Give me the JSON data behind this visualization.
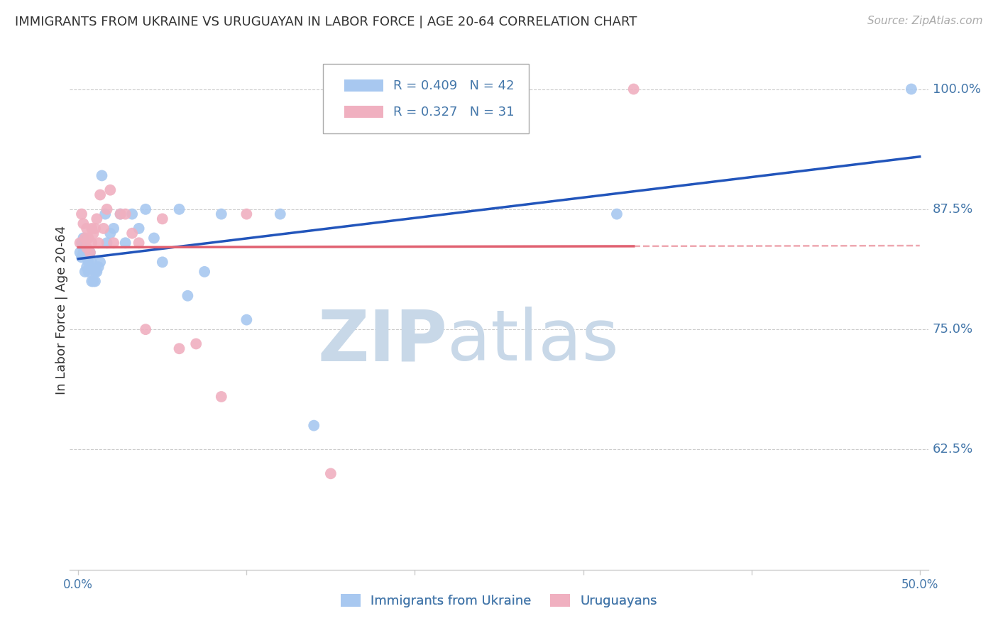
{
  "title": "IMMIGRANTS FROM UKRAINE VS URUGUAYAN IN LABOR FORCE | AGE 20-64 CORRELATION CHART",
  "source": "Source: ZipAtlas.com",
  "ylabel": "In Labor Force | Age 20-64",
  "ytick_labels": [
    "100.0%",
    "87.5%",
    "75.0%",
    "62.5%"
  ],
  "ytick_values": [
    1.0,
    0.875,
    0.75,
    0.625
  ],
  "xlim": [
    -0.005,
    0.505
  ],
  "ylim": [
    0.5,
    1.04
  ],
  "ukraine_x": [
    0.001,
    0.002,
    0.002,
    0.003,
    0.003,
    0.004,
    0.004,
    0.005,
    0.005,
    0.006,
    0.006,
    0.007,
    0.007,
    0.008,
    0.008,
    0.009,
    0.01,
    0.01,
    0.011,
    0.012,
    0.013,
    0.014,
    0.016,
    0.017,
    0.019,
    0.021,
    0.025,
    0.028,
    0.032,
    0.036,
    0.04,
    0.045,
    0.05,
    0.06,
    0.065,
    0.075,
    0.085,
    0.1,
    0.12,
    0.14,
    0.32,
    0.495
  ],
  "ukraine_y": [
    0.83,
    0.84,
    0.825,
    0.845,
    0.83,
    0.835,
    0.81,
    0.825,
    0.815,
    0.82,
    0.81,
    0.83,
    0.815,
    0.8,
    0.82,
    0.8,
    0.81,
    0.8,
    0.81,
    0.815,
    0.82,
    0.91,
    0.87,
    0.84,
    0.85,
    0.855,
    0.87,
    0.84,
    0.87,
    0.855,
    0.875,
    0.845,
    0.82,
    0.875,
    0.785,
    0.81,
    0.87,
    0.76,
    0.87,
    0.65,
    0.87,
    1.0
  ],
  "uruguay_x": [
    0.001,
    0.002,
    0.003,
    0.004,
    0.005,
    0.005,
    0.006,
    0.007,
    0.008,
    0.008,
    0.009,
    0.01,
    0.011,
    0.012,
    0.013,
    0.015,
    0.017,
    0.019,
    0.021,
    0.025,
    0.028,
    0.032,
    0.036,
    0.04,
    0.05,
    0.06,
    0.07,
    0.085,
    0.1,
    0.15,
    0.33
  ],
  "uruguay_y": [
    0.84,
    0.87,
    0.86,
    0.845,
    0.855,
    0.835,
    0.845,
    0.83,
    0.855,
    0.84,
    0.85,
    0.855,
    0.865,
    0.84,
    0.89,
    0.855,
    0.875,
    0.895,
    0.84,
    0.87,
    0.87,
    0.85,
    0.84,
    0.75,
    0.865,
    0.73,
    0.735,
    0.68,
    0.87,
    0.6,
    1.0
  ],
  "ukraine_R": 0.409,
  "ukraine_N": 42,
  "uruguay_R": 0.327,
  "uruguay_N": 31,
  "ukraine_color": "#a8c8f0",
  "uruguay_color": "#f0b0c0",
  "ukraine_line_color": "#2255bb",
  "uruguay_line_color": "#e06070",
  "background_color": "#ffffff",
  "grid_color": "#cccccc",
  "title_color": "#333333",
  "axis_label_color": "#4477aa",
  "watermark_zip_color": "#c8d8e8",
  "watermark_atlas_color": "#c8d8e8"
}
